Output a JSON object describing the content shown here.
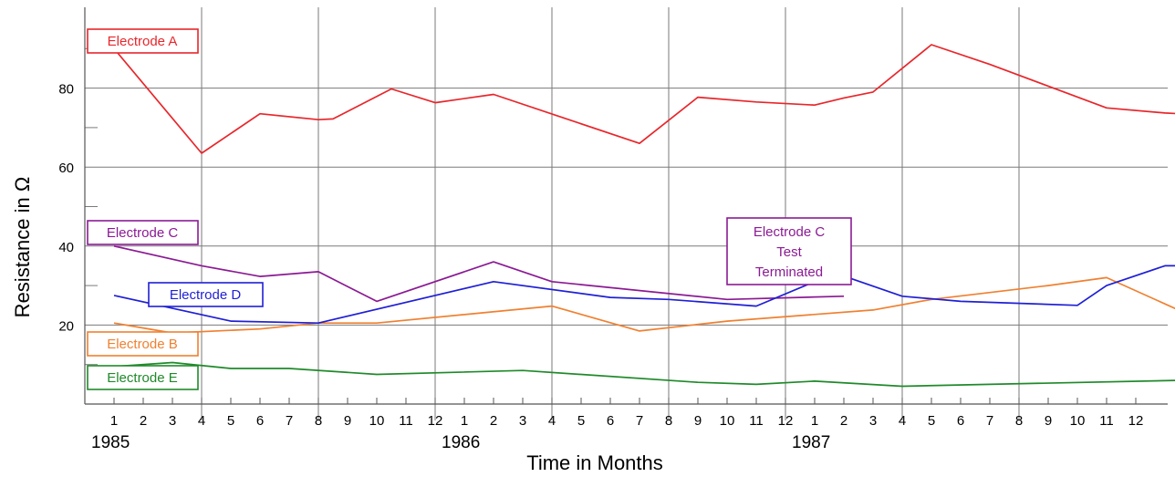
{
  "chart_data": {
    "type": "line",
    "xlabel": "Time in Months",
    "ylabel": "Resistance in Ω",
    "ylim": [
      0,
      100
    ],
    "xlim": [
      0,
      36.5
    ],
    "y_ticks": [
      20,
      40,
      60,
      80
    ],
    "grid": true,
    "month_tick_labels": [
      "1",
      "2",
      "3",
      "4",
      "5",
      "6",
      "7",
      "8",
      "9",
      "10",
      "11",
      "12",
      "1",
      "2",
      "3",
      "4",
      "5",
      "6",
      "7",
      "8",
      "9",
      "10",
      "11",
      "12",
      "1",
      "2",
      "3",
      "4",
      "5",
      "6",
      "7",
      "8",
      "9",
      "10",
      "11",
      "12"
    ],
    "year_labels": [
      "1985",
      "1986",
      "1987"
    ],
    "colors": {
      "Electrode A": "#e8262b",
      "Electrode B": "#f08030",
      "Electrode C": "#8b1a94",
      "Electrode D": "#1f1fd6",
      "Electrode E": "#1f8a2a"
    },
    "series": [
      {
        "name": "Electrode A",
        "x": [
          0,
          3,
          5,
          7,
          7.5,
          9.5,
          11,
          13,
          18,
          20,
          22,
          24,
          25,
          26,
          28,
          30,
          32,
          34,
          36,
          36.5
        ],
        "y": [
          90,
          63.5,
          73.5,
          72,
          72.2,
          79.8,
          76.3,
          78.4,
          66,
          77.7,
          76.5,
          75.7,
          77.5,
          79,
          91,
          86,
          80.5,
          75,
          73.7,
          73.5
        ]
      },
      {
        "name": "Electrode B",
        "x": [
          0,
          2,
          5,
          7,
          9,
          15,
          18,
          21,
          26,
          28,
          32,
          34,
          36.5
        ],
        "y": [
          20.5,
          18,
          19,
          20.5,
          20.5,
          24.8,
          18.5,
          21,
          23.8,
          26.5,
          30,
          32,
          23.7
        ]
      },
      {
        "name": "Electrode C",
        "x": [
          0,
          3,
          5,
          7,
          9,
          13,
          15,
          21,
          25
        ],
        "y": [
          40,
          35,
          32.3,
          33.5,
          26,
          36,
          31,
          26.5,
          27.3
        ]
      },
      {
        "name": "Electrode D",
        "x": [
          0,
          4,
          7,
          13,
          17,
          19,
          22,
          24,
          25,
          27,
          29,
          33,
          34,
          36,
          36.5
        ],
        "y": [
          27.5,
          21,
          20.5,
          31,
          27,
          26.5,
          24.8,
          31,
          32.4,
          27.3,
          26,
          25,
          30,
          35,
          35
        ]
      },
      {
        "name": "Electrode E",
        "x": [
          0,
          2,
          4,
          6,
          9,
          14,
          20,
          22,
          24,
          27,
          30,
          36.5
        ],
        "y": [
          9.5,
          10.5,
          9,
          9,
          7.5,
          8.5,
          5.5,
          5,
          5.8,
          4.5,
          5,
          6
        ]
      }
    ],
    "annotations": {
      "terminated": [
        "Electrode C",
        "Test",
        "Terminated"
      ]
    }
  }
}
